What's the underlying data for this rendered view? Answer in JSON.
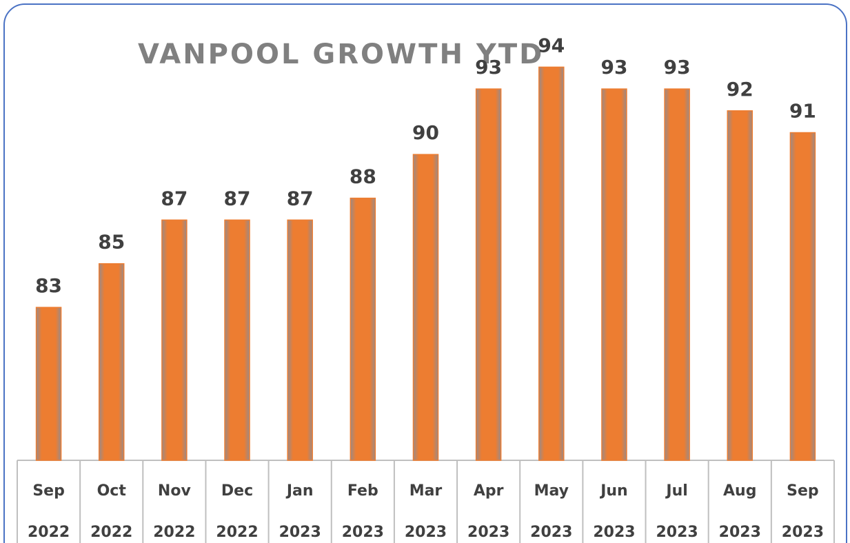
{
  "chart_data": {
    "type": "bar",
    "title": "VANPOOL GROWTH YTD",
    "categories": [
      "Sep 2022",
      "Oct 2022",
      "Nov 2022",
      "Dec 2022",
      "Jan 2023",
      "Feb 2023",
      "Mar 2023",
      "Apr 2023",
      "May 2023",
      "Jun 2023",
      "Jul 2023",
      "Aug 2023",
      "Sep 2023"
    ],
    "values": [
      83,
      85,
      87,
      87,
      87,
      88,
      90,
      93,
      94,
      93,
      93,
      92,
      91
    ],
    "color": "#ed7d31",
    "ylim": [
      76,
      96
    ]
  }
}
